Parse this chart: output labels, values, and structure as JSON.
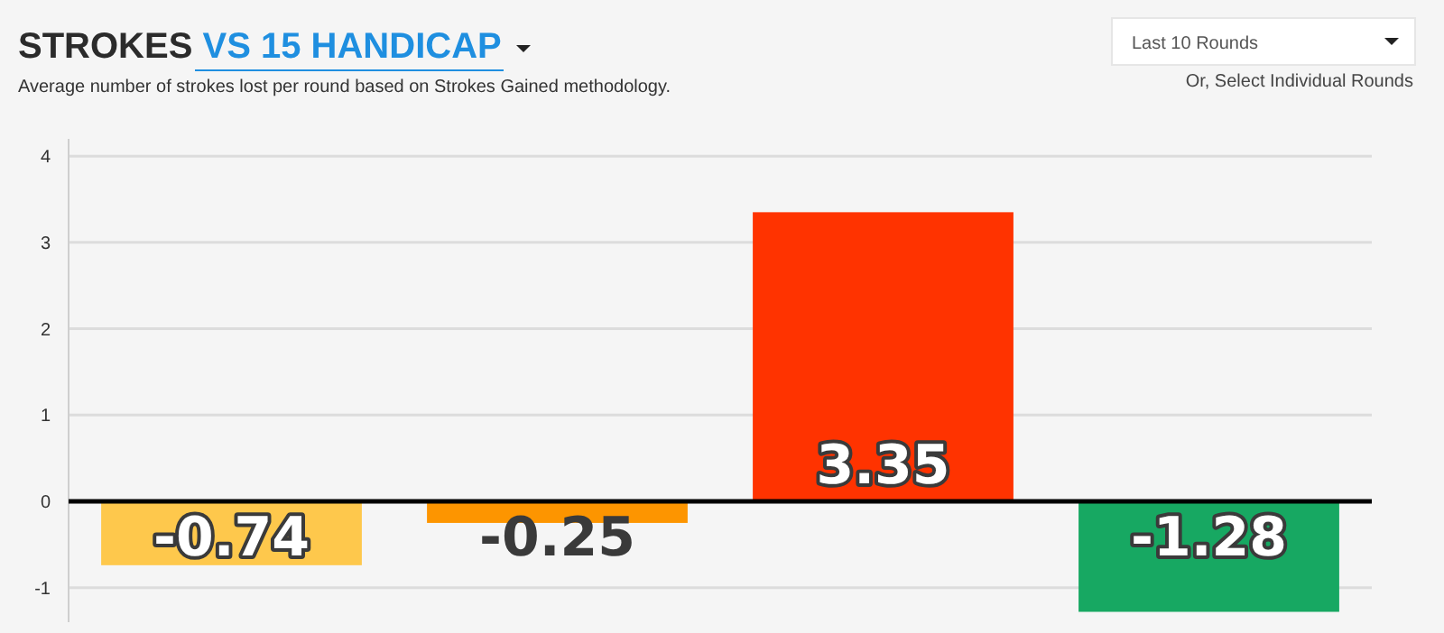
{
  "chart_data": {
    "type": "bar",
    "title": "STROKES VS 15 HANDICAP",
    "subtitle": "Average number of strokes lost per round based on Strokes Gained methodology.",
    "annotations": [
      "Last 10 Rounds",
      "Or, Select Individual Rounds"
    ],
    "categories": [
      null,
      null,
      null,
      null
    ],
    "values": [
      -0.74,
      -0.25,
      3.35,
      -1.28
    ],
    "colors": [
      "#fec84c",
      "#fd9500",
      "#ff3300",
      "#17a862"
    ],
    "ylim": [
      -1.4,
      4.2
    ],
    "yticks": [
      -1,
      0,
      1,
      2,
      3,
      4
    ],
    "grid": "y",
    "data_labels": true
  }
}
